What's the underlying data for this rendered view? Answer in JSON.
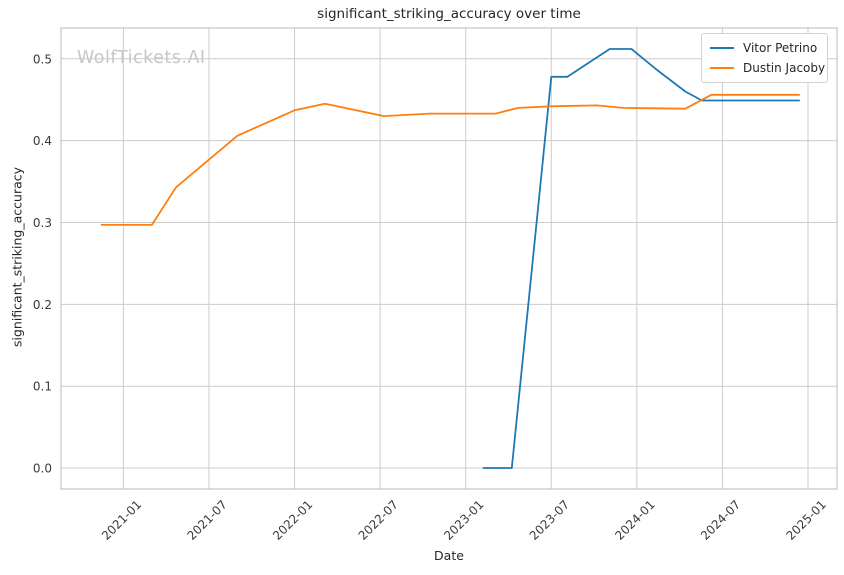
{
  "watermark": "WolfTickets.AI",
  "chart_data": {
    "type": "line",
    "title": "significant_striking_accuracy over time",
    "xlabel": "Date",
    "ylabel": "significant_striking_accuracy",
    "grid": true,
    "legend_position": "upper right",
    "x_ticks": [
      "2021-01",
      "2021-07",
      "2022-01",
      "2022-07",
      "2023-01",
      "2023-07",
      "2024-01",
      "2024-07",
      "2025-01"
    ],
    "y_ticks": [
      "0.0",
      "0.1",
      "0.2",
      "0.3",
      "0.4",
      "0.5"
    ],
    "xlim": [
      "2020-08-20",
      "2025-03-02"
    ],
    "ylim": [
      -0.0256,
      0.5376
    ],
    "colors": {
      "grid": "#cccccc",
      "spine": "#b8b8b8",
      "tick_text": "#3a3a3a"
    },
    "series": [
      {
        "name": "Vitor Petrino",
        "color": "#1f77b4",
        "points": [
          [
            "2023-02-07",
            0.0
          ],
          [
            "2023-04-08",
            0.0
          ],
          [
            "2023-07-01",
            0.478
          ],
          [
            "2023-08-05",
            0.478
          ],
          [
            "2023-11-04",
            0.512
          ],
          [
            "2023-12-20",
            0.512
          ],
          [
            "2024-02-10",
            0.488
          ],
          [
            "2024-04-13",
            0.46
          ],
          [
            "2024-05-18",
            0.449
          ],
          [
            "2024-12-14",
            0.449
          ]
        ]
      },
      {
        "name": "Dustin Jacoby",
        "color": "#ff7f0e",
        "points": [
          [
            "2020-11-14",
            0.297
          ],
          [
            "2021-03-01",
            0.297
          ],
          [
            "2021-04-22",
            0.343
          ],
          [
            "2021-09-01",
            0.406
          ],
          [
            "2022-01-01",
            0.437
          ],
          [
            "2022-03-05",
            0.445
          ],
          [
            "2022-07-09",
            0.43
          ],
          [
            "2022-10-15",
            0.433
          ],
          [
            "2023-03-04",
            0.433
          ],
          [
            "2023-04-22",
            0.44
          ],
          [
            "2023-07-01",
            0.442
          ],
          [
            "2023-10-07",
            0.443
          ],
          [
            "2023-12-02",
            0.44
          ],
          [
            "2024-04-13",
            0.439
          ],
          [
            "2024-06-08",
            0.456
          ],
          [
            "2024-12-14",
            0.456
          ]
        ]
      }
    ]
  }
}
